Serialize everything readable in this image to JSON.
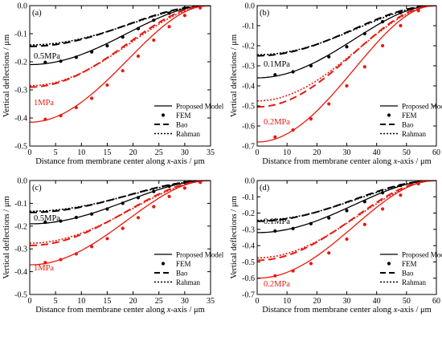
{
  "chart_data": [
    {
      "type": "line",
      "panel": "(a)",
      "xlabel_prefix": "Distance from membrane center along ",
      "xlabel_var": "x",
      "xlabel_suffix": "-axis / μm",
      "ylabel": "Vertical deflections / μm",
      "xlim": [
        0,
        35
      ],
      "ylim": [
        -0.5,
        0.0
      ],
      "xticks": [
        0,
        5,
        10,
        15,
        20,
        25,
        30,
        35
      ],
      "yticks": [
        0.0,
        -0.1,
        -0.2,
        -0.3,
        -0.4,
        -0.5
      ],
      "legend": [
        "Proposed Model",
        "FEM",
        "Bao",
        "Rahman"
      ],
      "legend_position": "bottom-right",
      "groups": [
        {
          "label": "0.5MPa",
          "color": "#000000",
          "w0": -0.21,
          "bao0": -0.145,
          "rah0": -0.14,
          "fem_x": [
            3,
            6,
            9,
            12,
            15,
            18,
            21,
            24,
            27,
            30,
            33
          ],
          "fem_y": [
            -0.202,
            -0.198,
            -0.184,
            -0.165,
            -0.143,
            -0.112,
            -0.082,
            -0.052,
            -0.027,
            -0.009,
            -0.002
          ]
        },
        {
          "label": "1MPa",
          "color": "#e8190f",
          "w0": -0.415,
          "bao0": -0.29,
          "rah0": -0.285,
          "fem_x": [
            3,
            6,
            9,
            12,
            15,
            18,
            21,
            24,
            27,
            30,
            33
          ],
          "fem_y": [
            -0.405,
            -0.392,
            -0.363,
            -0.33,
            -0.283,
            -0.232,
            -0.18,
            -0.123,
            -0.075,
            -0.035,
            -0.008
          ]
        }
      ]
    },
    {
      "type": "line",
      "panel": "(b)",
      "xlabel_prefix": "Distance from membrane center along ",
      "xlabel_var": "x",
      "xlabel_suffix": "-axis / μm",
      "ylabel": "Vertical deflections / μm",
      "xlim": [
        0,
        60
      ],
      "ylim": [
        -0.7,
        0.0
      ],
      "xticks": [
        0,
        10,
        20,
        30,
        40,
        50,
        60
      ],
      "yticks": [
        0.0,
        -0.1,
        -0.2,
        -0.3,
        -0.4,
        -0.5,
        -0.6,
        -0.7
      ],
      "legend": [
        "Proposed Model",
        "FEM",
        "Bao",
        "Rahman"
      ],
      "legend_position": "bottom-right",
      "groups": [
        {
          "label": "0.1MPa",
          "color": "#000000",
          "w0": -0.36,
          "bao0": -0.25,
          "rah0": -0.245,
          "fem_x": [
            6,
            12,
            18,
            24,
            30,
            36,
            42,
            48,
            54
          ],
          "fem_y": [
            -0.345,
            -0.33,
            -0.3,
            -0.255,
            -0.205,
            -0.14,
            -0.08,
            -0.035,
            -0.005
          ]
        },
        {
          "label": "0.2MPa",
          "color": "#e8190f",
          "w0": -0.68,
          "bao0": -0.505,
          "rah0": -0.475,
          "fem_x": [
            6,
            12,
            18,
            24,
            30,
            36,
            42,
            48,
            54
          ],
          "fem_y": [
            -0.655,
            -0.62,
            -0.565,
            -0.49,
            -0.4,
            -0.305,
            -0.2,
            -0.1,
            -0.025
          ]
        }
      ]
    },
    {
      "type": "line",
      "panel": "(c)",
      "xlabel_prefix": "Distance from membrane center along ",
      "xlabel_var": "x",
      "xlabel_suffix": "-axis / μm",
      "ylabel": "Vertical deflections / μm",
      "xlim": [
        0,
        35
      ],
      "ylim": [
        -0.5,
        0.0
      ],
      "xticks": [
        0,
        5,
        10,
        15,
        20,
        25,
        30,
        35
      ],
      "yticks": [
        0.0,
        -0.1,
        -0.2,
        -0.3,
        -0.4,
        -0.5
      ],
      "legend": [
        "Proposed Model",
        "FEM",
        "Bao",
        "Rahman"
      ],
      "legend_position": "bottom-right",
      "groups": [
        {
          "label": "0.5MPa",
          "color": "#000000",
          "w0": -0.19,
          "bao0": -0.14,
          "rah0": -0.135,
          "fem_x": [
            3,
            6,
            9,
            12,
            15,
            18,
            21,
            24,
            27,
            30,
            33
          ],
          "fem_y": [
            -0.183,
            -0.178,
            -0.162,
            -0.147,
            -0.125,
            -0.1,
            -0.075,
            -0.048,
            -0.025,
            -0.009,
            -0.002
          ]
        },
        {
          "label": "1MPa",
          "color": "#e8190f",
          "w0": -0.37,
          "bao0": -0.285,
          "rah0": -0.275,
          "fem_x": [
            3,
            6,
            9,
            12,
            15,
            18,
            21,
            24,
            27,
            30,
            33
          ],
          "fem_y": [
            -0.36,
            -0.347,
            -0.322,
            -0.29,
            -0.255,
            -0.21,
            -0.163,
            -0.115,
            -0.07,
            -0.033,
            -0.008
          ]
        }
      ]
    },
    {
      "type": "line",
      "panel": "(d)",
      "xlabel_prefix": "Distance from membrane center along ",
      "xlabel_var": "x",
      "xlabel_suffix": "-axis / μm",
      "ylabel": "Vertical deflections / μm",
      "xlim": [
        0,
        60
      ],
      "ylim": [
        -0.7,
        0.0
      ],
      "xticks": [
        0,
        10,
        20,
        30,
        40,
        50,
        60
      ],
      "yticks": [
        0.0,
        -0.1,
        -0.2,
        -0.3,
        -0.4,
        -0.5,
        -0.6,
        -0.7
      ],
      "legend": [
        "Proposed Model",
        "FEM",
        "Bao",
        "Rahman"
      ],
      "legend_position": "bottom-right",
      "groups": [
        {
          "label": "0.1MPa",
          "color": "#000000",
          "w0": -0.32,
          "bao0": -0.25,
          "rah0": -0.245,
          "fem_x": [
            6,
            12,
            18,
            24,
            30,
            36,
            42,
            48,
            54
          ],
          "fem_y": [
            -0.31,
            -0.295,
            -0.265,
            -0.23,
            -0.185,
            -0.13,
            -0.075,
            -0.03,
            -0.005
          ]
        },
        {
          "label": "0.2MPa",
          "color": "#e8190f",
          "w0": -0.6,
          "bao0": -0.49,
          "rah0": -0.475,
          "fem_x": [
            6,
            12,
            18,
            24,
            30,
            36,
            42,
            48,
            54
          ],
          "fem_y": [
            -0.585,
            -0.555,
            -0.51,
            -0.445,
            -0.36,
            -0.27,
            -0.175,
            -0.09,
            -0.02
          ]
        }
      ]
    }
  ]
}
